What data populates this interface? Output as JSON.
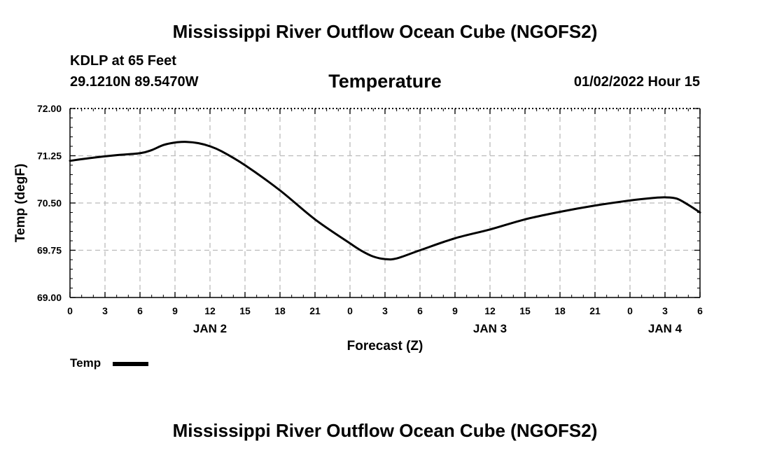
{
  "header": {
    "main_title": "Mississippi River Outflow Ocean Cube (NGOFS2)",
    "station": "KDLP at 65 Feet",
    "coordinates": "29.1210N  89.5470W",
    "chart_title": "Temperature",
    "run_time": "01/02/2022 Hour 15"
  },
  "footer": {
    "repeat_title": "Mississippi River Outflow Ocean Cube (NGOFS2)"
  },
  "legend": {
    "label": "Temp"
  },
  "colors": {
    "line": "#000000",
    "grid": "#bbbbbb",
    "background": "#ffffff"
  },
  "chart_data": {
    "type": "line",
    "title": "Temperature",
    "xlabel": "Forecast (Z)",
    "ylabel": "Temp (degF)",
    "xlim": [
      0,
      54
    ],
    "ylim": [
      69.0,
      72.0
    ],
    "grid": true,
    "legend_position": "bottom-left",
    "x_ticks": [
      0,
      3,
      6,
      9,
      12,
      15,
      18,
      21,
      24,
      27,
      30,
      33,
      36,
      39,
      42,
      45,
      48,
      51,
      54
    ],
    "x_tick_labels": [
      "0",
      "3",
      "6",
      "9",
      "12",
      "15",
      "18",
      "21",
      "0",
      "3",
      "6",
      "9",
      "12",
      "15",
      "18",
      "21",
      "0",
      "3",
      "6"
    ],
    "y_ticks": [
      69.0,
      69.75,
      70.5,
      71.25,
      72.0
    ],
    "y_tick_labels": [
      "69.00",
      "69.75",
      "70.50",
      "71.25",
      "72.00"
    ],
    "day_labels": [
      {
        "x": 12,
        "text": "JAN 2"
      },
      {
        "x": 36,
        "text": "JAN 3"
      },
      {
        "x": 51,
        "text": "JAN 4"
      }
    ],
    "series": [
      {
        "name": "Temp",
        "x": [
          0,
          2,
          4,
          6,
          7,
          8,
          9,
          10,
          11,
          12,
          13,
          15,
          18,
          21,
          24,
          25,
          26,
          27,
          28,
          30,
          33,
          36,
          39,
          42,
          45,
          48,
          50,
          51,
          52,
          53,
          54
        ],
        "values": [
          71.17,
          71.22,
          71.26,
          71.29,
          71.34,
          71.42,
          71.46,
          71.47,
          71.45,
          71.4,
          71.32,
          71.1,
          70.7,
          70.24,
          69.86,
          69.74,
          69.65,
          69.61,
          69.62,
          69.75,
          69.94,
          70.08,
          70.24,
          70.36,
          70.46,
          70.54,
          70.58,
          70.59,
          70.57,
          70.47,
          70.35
        ]
      }
    ]
  }
}
